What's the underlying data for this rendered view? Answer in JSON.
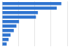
{
  "chart_data": {
    "type": "bar",
    "orientation": "horizontal",
    "categories": [
      null,
      null,
      null,
      null,
      null,
      null,
      null,
      null,
      null,
      null
    ],
    "values": [
      91,
      84,
      55,
      52,
      26,
      22,
      18,
      13,
      10,
      7
    ],
    "color": "#2f74d0",
    "xlim": [
      0,
      100
    ],
    "xticks": [
      0,
      25,
      50,
      75,
      100
    ],
    "grid": true,
    "tick_labels": false
  }
}
